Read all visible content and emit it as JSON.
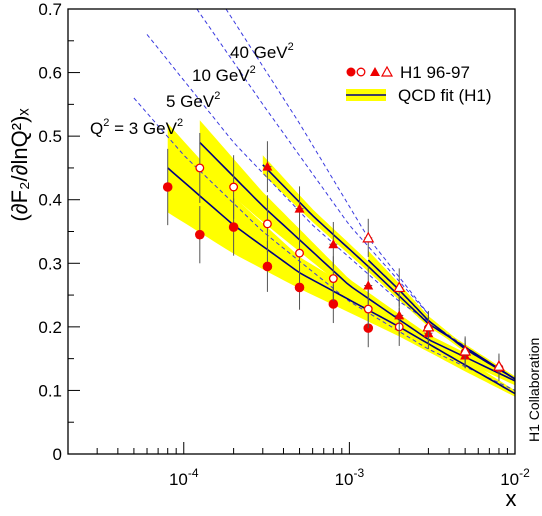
{
  "chart_data": {
    "type": "scatter",
    "title": "",
    "ylabel": "(∂F₂/∂lnQ²)ₓ",
    "xlabel": "x",
    "xscale": "log",
    "xlim": [
      2e-05,
      0.01
    ],
    "ylim": [
      0,
      0.7
    ],
    "grid": false,
    "x_ticks": [
      {
        "value": 0.0001,
        "base": "10",
        "exp": "-4"
      },
      {
        "value": 0.001,
        "base": "10",
        "exp": "-3"
      },
      {
        "value": 0.01,
        "base": "10",
        "exp": "-2"
      }
    ],
    "y_ticks": [
      "0",
      "0.1",
      "0.2",
      "0.3",
      "0.4",
      "0.5",
      "0.6",
      "0.7"
    ],
    "y_tick_values": [
      0,
      0.1,
      0.2,
      0.3,
      0.4,
      0.5,
      0.6,
      0.7
    ],
    "legend": {
      "placement": "top-right",
      "data_label": "H1 96-97",
      "fit_label": "QCD fit (H1)"
    },
    "annotations": {
      "q2_prefix": "Q",
      "q2_sup": "2",
      "q2_eq": " = 3 GeV",
      "q2_eq_sup": "2",
      "q2_labels": [
        {
          "value": "5 GeV",
          "sup": "2"
        },
        {
          "value": "10 GeV",
          "sup": "2"
        },
        {
          "value": "40 GeV",
          "sup": "2"
        }
      ],
      "collaboration": "H1 Collaboration"
    },
    "colors": {
      "data": "#ee0000",
      "band": "#ffff00",
      "fit_line": "#000080",
      "dashed": "#3a3ae0"
    },
    "series": [
      {
        "q2": 3,
        "marker": "filled-circle",
        "points": [
          {
            "x": 8e-05,
            "y": 0.42,
            "err": 0.06
          },
          {
            "x": 0.000125,
            "y": 0.345,
            "err": 0.045
          },
          {
            "x": 0.0002,
            "y": 0.357,
            "err": 0.045
          },
          {
            "x": 0.00032,
            "y": 0.295,
            "err": 0.04
          },
          {
            "x": 0.0005,
            "y": 0.262,
            "err": 0.035
          },
          {
            "x": 0.0008,
            "y": 0.236,
            "err": 0.03
          },
          {
            "x": 0.0013,
            "y": 0.198,
            "err": 0.03
          }
        ],
        "fit": {
          "x": [
            8e-05,
            0.0002,
            0.0005,
            0.002,
            0.005,
            0.01
          ],
          "y": [
            0.45,
            0.36,
            0.285,
            0.2,
            0.14,
            0.095
          ]
        },
        "band": {
          "x": [
            8e-05,
            0.0002,
            0.0005,
            0.002,
            0.005,
            0.01
          ],
          "lo": [
            0.38,
            0.315,
            0.26,
            0.185,
            0.13,
            0.09
          ],
          "hi": [
            0.52,
            0.405,
            0.31,
            0.215,
            0.15,
            0.1
          ]
        },
        "dashed": {
          "x": [
            5e-05,
            0.0001,
            0.0003,
            0.001,
            0.003,
            0.01
          ],
          "y": [
            0.56,
            0.47,
            0.35,
            0.24,
            0.165,
            0.1
          ]
        }
      },
      {
        "q2": 5,
        "marker": "open-circle",
        "points": [
          {
            "x": 0.000125,
            "y": 0.45,
            "err": 0.055
          },
          {
            "x": 0.0002,
            "y": 0.42,
            "err": 0.05
          },
          {
            "x": 0.00032,
            "y": 0.362,
            "err": 0.045
          },
          {
            "x": 0.0005,
            "y": 0.316,
            "err": 0.04
          },
          {
            "x": 0.0008,
            "y": 0.276,
            "err": 0.035
          },
          {
            "x": 0.0013,
            "y": 0.228,
            "err": 0.03
          },
          {
            "x": 0.002,
            "y": 0.2,
            "err": 0.03
          },
          {
            "x": 0.003,
            "y": 0.198,
            "err": 0.025
          },
          {
            "x": 0.005,
            "y": 0.16,
            "err": 0.025
          },
          {
            "x": 0.008,
            "y": 0.135,
            "err": 0.02
          }
        ],
        "fit": {
          "x": [
            0.000125,
            0.0003,
            0.001,
            0.003,
            0.01
          ],
          "y": [
            0.49,
            0.39,
            0.265,
            0.18,
            0.115
          ]
        },
        "band": {
          "x": [
            0.000125,
            0.0003,
            0.001,
            0.003,
            0.01
          ],
          "lo": [
            0.45,
            0.365,
            0.255,
            0.172,
            0.108
          ],
          "hi": [
            0.525,
            0.412,
            0.275,
            0.188,
            0.12
          ]
        },
        "dashed": {
          "x": [
            6e-05,
            0.0002,
            0.0006,
            0.002,
            0.006
          ],
          "y": [
            0.66,
            0.49,
            0.36,
            0.24,
            0.155
          ]
        }
      },
      {
        "q2": 10,
        "marker": "filled-triangle",
        "points": [
          {
            "x": 0.00032,
            "y": 0.452,
            "err": 0.04
          },
          {
            "x": 0.0005,
            "y": 0.386,
            "err": 0.035
          },
          {
            "x": 0.0008,
            "y": 0.33,
            "err": 0.035
          },
          {
            "x": 0.0013,
            "y": 0.265,
            "err": 0.03
          },
          {
            "x": 0.002,
            "y": 0.218,
            "err": 0.03
          },
          {
            "x": 0.003,
            "y": 0.19,
            "err": 0.025
          },
          {
            "x": 0.005,
            "y": 0.155,
            "err": 0.02
          }
        ],
        "fit": {
          "x": [
            0.0003,
            0.0006,
            0.0013,
            0.003,
            0.01
          ],
          "y": [
            0.455,
            0.375,
            0.295,
            0.205,
            0.118
          ]
        },
        "band": {
          "x": [
            0.0003,
            0.0006,
            0.0013,
            0.003,
            0.01
          ],
          "lo": [
            0.44,
            0.365,
            0.287,
            0.2,
            0.114
          ],
          "hi": [
            0.47,
            0.385,
            0.303,
            0.21,
            0.122
          ]
        },
        "dashed": {
          "x": [
            0.00012,
            0.0003,
            0.001,
            0.003
          ],
          "y": [
            0.7,
            0.55,
            0.36,
            0.22
          ]
        }
      },
      {
        "q2": 40,
        "marker": "open-triangle",
        "points": [
          {
            "x": 0.0013,
            "y": 0.34,
            "err": 0.03
          },
          {
            "x": 0.002,
            "y": 0.262,
            "err": 0.03
          },
          {
            "x": 0.003,
            "y": 0.2,
            "err": 0.025
          },
          {
            "x": 0.005,
            "y": 0.162,
            "err": 0.02
          },
          {
            "x": 0.008,
            "y": 0.138,
            "err": 0.02
          }
        ],
        "fit": {
          "x": [
            0.0013,
            0.002,
            0.003,
            0.005,
            0.01
          ],
          "y": [
            0.305,
            0.258,
            0.21,
            0.165,
            0.118
          ]
        },
        "band": {
          "x": [
            0.0013,
            0.002,
            0.003,
            0.005,
            0.01
          ],
          "lo": [
            0.29,
            0.248,
            0.203,
            0.16,
            0.114
          ],
          "hi": [
            0.32,
            0.268,
            0.217,
            0.17,
            0.122
          ]
        },
        "dashed": {
          "x": [
            0.00018,
            0.0005,
            0.0013,
            0.003
          ],
          "y": [
            0.7,
            0.52,
            0.34,
            0.22
          ]
        }
      }
    ]
  }
}
